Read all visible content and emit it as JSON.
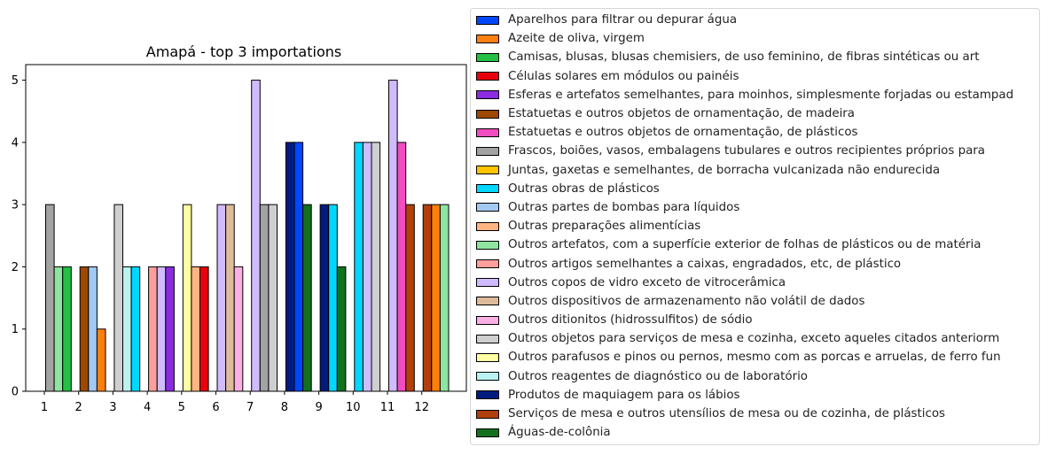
{
  "chart_data": {
    "type": "bar",
    "title": "Amapá - top 3 importations",
    "xlabel": "",
    "ylabel": "",
    "ylim": [
      0,
      5.25
    ],
    "yticks": [
      0,
      1,
      2,
      3,
      4,
      5
    ],
    "categories": [
      "1",
      "2",
      "3",
      "4",
      "5",
      "6",
      "7",
      "8",
      "9",
      "10",
      "11",
      "12"
    ],
    "legend_position": "right, outside",
    "grid": false,
    "series": [
      {
        "name": "Aparelhos para filtrar ou depurar água",
        "color": "#0047ff"
      },
      {
        "name": "Azeite de oliva, virgem",
        "color": "#ff7f0e"
      },
      {
        "name": "Camisas, blusas, blusas chemisiers, de uso feminino, de fibras sintéticas ou art",
        "color": "#22c043"
      },
      {
        "name": "Células solares em módulos ou painéis",
        "color": "#e8000b"
      },
      {
        "name": "Esferas e artefatos semelhantes, para moinhos, simplesmente forjadas ou estampad",
        "color": "#8b2be2"
      },
      {
        "name": "Estatuetas e outros objetos de ornamentação, de madeira",
        "color": "#9f4800"
      },
      {
        "name": "Estatuetas e outros objetos de ornamentação, de plásticos",
        "color": "#f14cc1"
      },
      {
        "name": "Frascos, boiões, vasos, embalagens tubulares e outros recipientes próprios para",
        "color": "#a3a3a3"
      },
      {
        "name": "Juntas, gaxetas e semelhantes, de borracha vulcanizada não endurecida",
        "color": "#ffc400"
      },
      {
        "name": "Outras obras de plásticos",
        "color": "#00d7ff"
      },
      {
        "name": "Outras partes de bombas para líquidos",
        "color": "#a1c9f4"
      },
      {
        "name": "Outras preparações alimentícias",
        "color": "#ffb482"
      },
      {
        "name": "Outros artefatos, com a superfície exterior de folhas de plásticos ou de matéria",
        "color": "#8de5a1"
      },
      {
        "name": "Outros artigos semelhantes a caixas, engradados, etc, de plástico",
        "color": "#ff9f9b"
      },
      {
        "name": "Outros copos de vidro exceto de vitrocerâmica",
        "color": "#d0bbff"
      },
      {
        "name": "Outros dispositivos de armazenamento não volátil de dados",
        "color": "#debb9b"
      },
      {
        "name": "Outros ditionitos (hidrossulfitos) de sódio",
        "color": "#fab0e4"
      },
      {
        "name": "Outros objetos para serviços de mesa e cozinha, exceto aqueles citados anteriorm",
        "color": "#cfcfcf"
      },
      {
        "name": "Outros parafusos e pinos ou pernos, mesmo com as porcas e arruelas, de ferro fun",
        "color": "#fffea3"
      },
      {
        "name": "Outros reagentes de diagnóstico ou de laboratório",
        "color": "#b9f2f0"
      },
      {
        "name": "Produtos de maquiagem para os lábios",
        "color": "#001c7f"
      },
      {
        "name": "Serviços de mesa e outros utensílios de mesa ou de cozinha, de plásticos",
        "color": "#b1400d"
      },
      {
        "name": "Águas-de-colônia",
        "color": "#12711c"
      }
    ],
    "groups": [
      [
        {
          "series": 7,
          "value": 3
        },
        {
          "series": 12,
          "value": 2
        },
        {
          "series": 2,
          "value": 2
        }
      ],
      [
        {
          "series": 5,
          "value": 2
        },
        {
          "series": 10,
          "value": 2
        },
        {
          "series": 1,
          "value": 1
        }
      ],
      [
        {
          "series": 17,
          "value": 3
        },
        {
          "series": 19,
          "value": 2
        },
        {
          "series": 9,
          "value": 2
        }
      ],
      [
        {
          "series": 13,
          "value": 2
        },
        {
          "series": 14,
          "value": 2
        },
        {
          "series": 4,
          "value": 2
        }
      ],
      [
        {
          "series": 18,
          "value": 3
        },
        {
          "series": 11,
          "value": 2
        },
        {
          "series": 3,
          "value": 2
        }
      ],
      [
        {
          "series": 14,
          "value": 3
        },
        {
          "series": 15,
          "value": 3
        },
        {
          "series": 16,
          "value": 2
        }
      ],
      [
        {
          "series": 14,
          "value": 5
        },
        {
          "series": 7,
          "value": 3
        },
        {
          "series": 17,
          "value": 3
        }
      ],
      [
        {
          "series": 20,
          "value": 4
        },
        {
          "series": 0,
          "value": 4
        },
        {
          "series": 22,
          "value": 3
        }
      ],
      [
        {
          "series": 20,
          "value": 3
        },
        {
          "series": 9,
          "value": 3
        },
        {
          "series": 22,
          "value": 2
        }
      ],
      [
        {
          "series": 9,
          "value": 4
        },
        {
          "series": 14,
          "value": 4
        },
        {
          "series": 17,
          "value": 4
        }
      ],
      [
        {
          "series": 14,
          "value": 5
        },
        {
          "series": 6,
          "value": 4
        },
        {
          "series": 21,
          "value": 3
        }
      ],
      [
        {
          "series": 21,
          "value": 3
        },
        {
          "series": 1,
          "value": 3
        },
        {
          "series": 12,
          "value": 3
        }
      ]
    ]
  }
}
